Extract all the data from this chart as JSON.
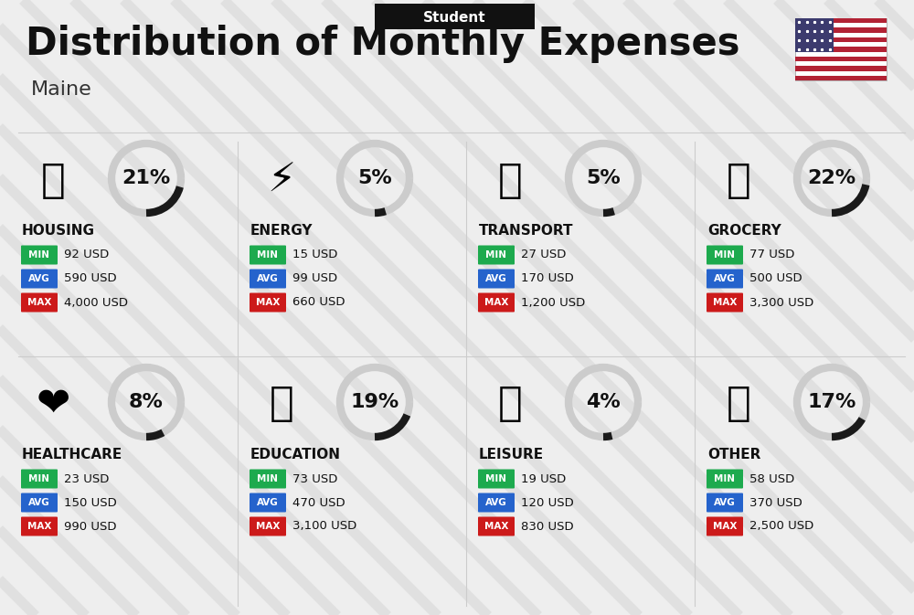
{
  "title": "Distribution of Monthly Expenses",
  "subtitle": "Student",
  "location": "Maine",
  "bg_color": "#eeeeee",
  "categories": [
    {
      "name": "HOUSING",
      "pct": 21,
      "min": "92 USD",
      "avg": "590 USD",
      "max": "4,000 USD",
      "row": 0,
      "col": 0
    },
    {
      "name": "ENERGY",
      "pct": 5,
      "min": "15 USD",
      "avg": "99 USD",
      "max": "660 USD",
      "row": 0,
      "col": 1
    },
    {
      "name": "TRANSPORT",
      "pct": 5,
      "min": "27 USD",
      "avg": "170 USD",
      "max": "1,200 USD",
      "row": 0,
      "col": 2
    },
    {
      "name": "GROCERY",
      "pct": 22,
      "min": "77 USD",
      "avg": "500 USD",
      "max": "3,300 USD",
      "row": 0,
      "col": 3
    },
    {
      "name": "HEALTHCARE",
      "pct": 8,
      "min": "23 USD",
      "avg": "150 USD",
      "max": "990 USD",
      "row": 1,
      "col": 0
    },
    {
      "name": "EDUCATION",
      "pct": 19,
      "min": "73 USD",
      "avg": "470 USD",
      "max": "3,100 USD",
      "row": 1,
      "col": 1
    },
    {
      "name": "LEISURE",
      "pct": 4,
      "min": "19 USD",
      "avg": "120 USD",
      "max": "830 USD",
      "row": 1,
      "col": 2
    },
    {
      "name": "OTHER",
      "pct": 17,
      "min": "58 USD",
      "avg": "370 USD",
      "max": "2,500 USD",
      "row": 1,
      "col": 3
    }
  ],
  "min_color": "#1daa4e",
  "avg_color": "#2563cc",
  "max_color": "#cc1a1a",
  "ring_dark": "#1a1a1a",
  "ring_light": "#cccccc",
  "icons": {
    "HOUSING": "🏗",
    "ENERGY": "⚡",
    "TRANSPORT": "🚌",
    "GROCERY": "🛒",
    "HEALTHCARE": "❤",
    "EDUCATION": "🎓",
    "LEISURE": "🛍",
    "OTHER": "💰"
  },
  "stripe_color": "#d5d5d5",
  "stripe_alpha": 0.55,
  "stripe_lw": 8
}
